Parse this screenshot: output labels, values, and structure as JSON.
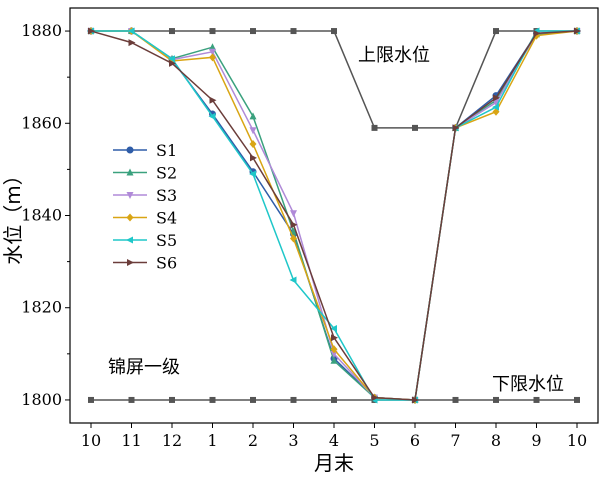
{
  "chart_data": {
    "type": "line",
    "xlabel": "月末",
    "ylabel": "水位（m）",
    "categories": [
      "10",
      "11",
      "12",
      "1",
      "2",
      "3",
      "4",
      "5",
      "6",
      "7",
      "8",
      "9",
      "10"
    ],
    "ylim": [
      1795,
      1885
    ],
    "yticks": [
      1800,
      1820,
      1840,
      1860,
      1880
    ],
    "grid": false,
    "legend_position": "left",
    "annotations": {
      "upper": "上限水位",
      "lower": "下限水位",
      "station": "锦屏一级"
    },
    "upper_limit": {
      "color": "#555555",
      "values": [
        1880,
        1880,
        1880,
        1880,
        1880,
        1880,
        1880,
        1859,
        1859,
        1859,
        1880,
        1880,
        1880
      ]
    },
    "lower_limit": {
      "color": "#555555",
      "values": [
        1800,
        1800,
        1800,
        1800,
        1800,
        1800,
        1800,
        1800,
        1800,
        1800,
        1800,
        1800,
        1800
      ]
    },
    "series": [
      {
        "name": "S1",
        "color": "#2f5da8",
        "marker": "circle",
        "values": [
          1880,
          1880,
          1873.8,
          1862,
          1849.5,
          1836,
          1809,
          1800.5,
          1800,
          1859,
          1866,
          1879.5,
          1880
        ]
      },
      {
        "name": "S2",
        "color": "#3aa17e",
        "marker": "triangle-up",
        "values": [
          1880,
          1880,
          1874,
          1876.5,
          1861.5,
          1836.5,
          1808.5,
          1800.5,
          1800,
          1859,
          1865,
          1879.3,
          1880
        ]
      },
      {
        "name": "S3",
        "color": "#b08ad8",
        "marker": "triangle-down",
        "values": [
          1880,
          1880,
          1873.8,
          1875.5,
          1858.5,
          1840.5,
          1810,
          1800.5,
          1800,
          1859,
          1864.5,
          1879.5,
          1880
        ]
      },
      {
        "name": "S4",
        "color": "#d9a514",
        "marker": "diamond",
        "values": [
          1880,
          1880,
          1873.5,
          1874.3,
          1855.5,
          1835,
          1811,
          1800.5,
          1800,
          1859,
          1862.5,
          1879,
          1880
        ]
      },
      {
        "name": "S5",
        "color": "#1fc7c9",
        "marker": "triangle-left",
        "values": [
          1880,
          1880,
          1874,
          1861.5,
          1849,
          1826,
          1815.5,
          1800,
          1800,
          1859,
          1863.5,
          1880,
          1880
        ]
      },
      {
        "name": "S6",
        "color": "#6b3d3a",
        "marker": "triangle-right",
        "values": [
          1880,
          1877.5,
          1873,
          1865,
          1852.5,
          1838,
          1813.5,
          1800.5,
          1800,
          1859,
          1865.5,
          1879.5,
          1880
        ]
      }
    ]
  }
}
